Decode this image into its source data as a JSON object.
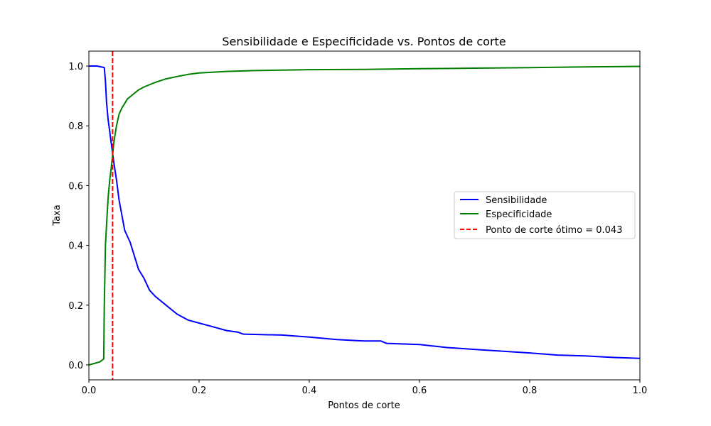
{
  "chart_data": {
    "type": "line",
    "title": "Sensibilidade e Especificidade vs. Pontos de corte",
    "xlabel": "Pontos de corte",
    "ylabel": "Taxa",
    "xlim": [
      0.0,
      1.0
    ],
    "ylim": [
      -0.05,
      1.05
    ],
    "x_ticks": [
      0.0,
      0.2,
      0.4,
      0.6,
      0.8,
      1.0
    ],
    "x_tick_labels": [
      "0.0",
      "0.2",
      "0.4",
      "0.6",
      "0.8",
      "1.0"
    ],
    "y_ticks": [
      0.0,
      0.2,
      0.4,
      0.6,
      0.8,
      1.0
    ],
    "y_tick_labels": [
      "0.0",
      "0.2",
      "0.4",
      "0.6",
      "0.8",
      "1.0"
    ],
    "grid": false,
    "legend_placement": "center-right",
    "series": [
      {
        "name": "Sensibilidade",
        "color": "#0000ff",
        "style": "solid",
        "x": [
          0.0,
          0.015,
          0.02,
          0.028,
          0.03,
          0.032,
          0.035,
          0.038,
          0.04,
          0.043,
          0.045,
          0.05,
          0.055,
          0.06,
          0.065,
          0.07,
          0.075,
          0.08,
          0.085,
          0.09,
          0.1,
          0.11,
          0.12,
          0.14,
          0.16,
          0.18,
          0.2,
          0.22,
          0.25,
          0.27,
          0.28,
          0.3,
          0.35,
          0.4,
          0.45,
          0.5,
          0.53,
          0.54,
          0.6,
          0.65,
          0.7,
          0.75,
          0.8,
          0.85,
          0.9,
          0.95,
          1.0
        ],
        "y": [
          1.0,
          1.0,
          0.998,
          0.995,
          0.95,
          0.88,
          0.82,
          0.78,
          0.75,
          0.71,
          0.68,
          0.62,
          0.55,
          0.5,
          0.45,
          0.43,
          0.41,
          0.38,
          0.35,
          0.32,
          0.29,
          0.25,
          0.23,
          0.2,
          0.17,
          0.15,
          0.14,
          0.13,
          0.115,
          0.11,
          0.103,
          0.102,
          0.1,
          0.093,
          0.085,
          0.08,
          0.08,
          0.072,
          0.068,
          0.058,
          0.052,
          0.046,
          0.04,
          0.033,
          0.03,
          0.025,
          0.022
        ]
      },
      {
        "name": "Especificidade",
        "color": "#008000",
        "style": "solid",
        "x": [
          0.0,
          0.01,
          0.02,
          0.027,
          0.028,
          0.03,
          0.033,
          0.035,
          0.038,
          0.04,
          0.043,
          0.045,
          0.05,
          0.055,
          0.06,
          0.065,
          0.07,
          0.08,
          0.09,
          0.1,
          0.12,
          0.14,
          0.16,
          0.18,
          0.2,
          0.25,
          0.3,
          0.4,
          0.5,
          0.6,
          0.7,
          0.8,
          0.9,
          1.0
        ],
        "y": [
          0.0,
          0.005,
          0.01,
          0.02,
          0.2,
          0.4,
          0.5,
          0.56,
          0.62,
          0.65,
          0.7,
          0.74,
          0.8,
          0.84,
          0.86,
          0.875,
          0.89,
          0.905,
          0.92,
          0.93,
          0.945,
          0.957,
          0.965,
          0.972,
          0.977,
          0.982,
          0.985,
          0.988,
          0.989,
          0.991,
          0.993,
          0.995,
          0.997,
          0.999
        ]
      }
    ],
    "vline": {
      "name": "Ponto de corte ótimo = 0.043",
      "x": 0.043,
      "color": "#ff0000",
      "style": "dashed"
    }
  }
}
